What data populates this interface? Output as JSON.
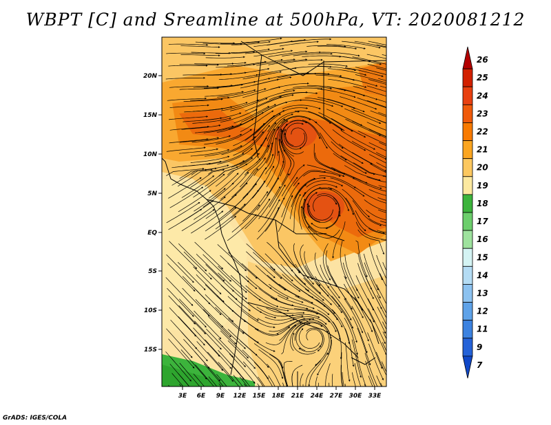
{
  "title": "WBPT [C] and Sreamline at 500hPa, VT: 2020081212",
  "footer": "GrADS: IGES/COLA",
  "map": {
    "lon_range": [
      0,
      36
    ],
    "lat_range": [
      -20,
      25
    ],
    "lon_ticks": [
      "3E",
      "6E",
      "9E",
      "12E",
      "15E",
      "18E",
      "21E",
      "24E",
      "27E",
      "30E",
      "33E"
    ],
    "lat_ticks": [
      "20N",
      "15N",
      "10N",
      "5N",
      "EQ",
      "5S",
      "10S",
      "15S"
    ],
    "variable": "Wet-bulb potential temperature at 500hPa",
    "units": "C",
    "overlay": "streamlines",
    "features": {
      "cyclonic_circulations": [
        {
          "name": "warm-core-vortex-north",
          "lon": 22,
          "lat": 12
        },
        {
          "name": "warm-core-vortex-central",
          "lon": 25,
          "lat": 4
        }
      ],
      "warm_band": "22-24 C over Sahel/Sudan 8N-18N",
      "cool_region": "17-18 C off southwest coast near 18S"
    }
  },
  "colorbar": {
    "labels": [
      "26",
      "25",
      "24",
      "23",
      "22",
      "21",
      "20",
      "19",
      "18",
      "17",
      "16",
      "15",
      "14",
      "13",
      "12",
      "11",
      "9",
      "7"
    ],
    "colors": [
      "#b40000",
      "#d22000",
      "#e84010",
      "#f05a0a",
      "#f87a00",
      "#fba520",
      "#fcc860",
      "#fde9a0",
      "#3cb43c",
      "#6cce6c",
      "#9ee29e",
      "#d4f3f3",
      "#b4dcf4",
      "#8cc2f0",
      "#5ea2e8",
      "#3c82e0",
      "#2462d8",
      "#1048c8"
    ]
  }
}
